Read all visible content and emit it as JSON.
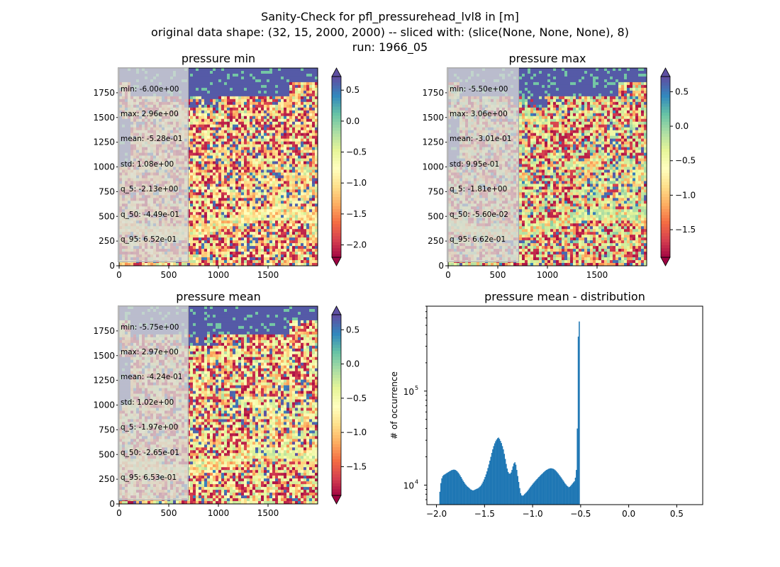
{
  "figure": {
    "suptitle_lines": [
      "Sanity-Check for pfl_pressurehead_lvl8 in [m]",
      "original data shape: (32, 15, 2000, 2000) -- sliced with: (slice(None, None, None), 8)",
      "run: 1966_05"
    ]
  },
  "chart_data": [
    {
      "type": "heatmap",
      "title": "pressure min",
      "xlim": [
        0,
        2000
      ],
      "ylim": [
        0,
        2000
      ],
      "xticks": [
        0,
        500,
        1000,
        1500
      ],
      "yticks": [
        0,
        250,
        500,
        750,
        1000,
        1250,
        1500,
        1750
      ],
      "colormap": "Spectral",
      "colorbar": {
        "vmin": -2.2,
        "vmax": 0.72,
        "ticks": [
          -2.0,
          -1.5,
          -1.0,
          -0.5,
          0.0,
          0.5
        ],
        "extend": "both"
      },
      "stats": {
        "min": "-6.00e+00",
        "max": "2.96e+00",
        "mean": "-5.28e-01",
        "std": "1.08e+00",
        "q_5": "-2.13e+00",
        "q_50": "-4.49e-01",
        "q_95": "6.52e-01"
      }
    },
    {
      "type": "heatmap",
      "title": "pressure max",
      "xlim": [
        0,
        2000
      ],
      "ylim": [
        0,
        2000
      ],
      "xticks": [
        0,
        500,
        1000,
        1500
      ],
      "yticks": [
        0,
        250,
        500,
        750,
        1000,
        1250,
        1500,
        1750
      ],
      "colormap": "Spectral",
      "colorbar": {
        "vmin": -1.9,
        "vmax": 0.72,
        "ticks": [
          -1.5,
          -1.0,
          -0.5,
          0.0,
          0.5
        ],
        "extend": "both"
      },
      "stats": {
        "min": "-5.50e+00",
        "max": "3.06e+00",
        "mean": "-3.01e-01",
        "std": "9.95e-01",
        "q_5": "-1.81e+00",
        "q_50": "-5.60e-02",
        "q_95": "6.62e-01"
      }
    },
    {
      "type": "heatmap",
      "title": "pressure mean",
      "xlim": [
        0,
        2000
      ],
      "ylim": [
        0,
        2000
      ],
      "xticks": [
        0,
        500,
        1000,
        1500
      ],
      "yticks": [
        0,
        250,
        500,
        750,
        1000,
        1250,
        1500,
        1750
      ],
      "colormap": "Spectral",
      "colorbar": {
        "vmin": -1.92,
        "vmax": 0.72,
        "ticks": [
          -1.5,
          -1.0,
          -0.5,
          0.0,
          0.5
        ],
        "extend": "both"
      },
      "stats": {
        "min": "-5.75e+00",
        "max": "2.97e+00",
        "mean": "-4.24e-01",
        "std": "1.02e+00",
        "q_5": "-1.97e+00",
        "q_50": "-2.65e-01",
        "q_95": "6.53e-01"
      }
    },
    {
      "type": "bar",
      "title": "pressure mean - distribution",
      "ylabel": "# of occurrence",
      "yscale": "log",
      "xlim": [
        -2.1,
        0.77
      ],
      "ylim": [
        6200,
        800000
      ],
      "xticks": [
        -2.0,
        -1.5,
        -1.0,
        -0.5,
        0.0,
        0.5
      ],
      "xtick_labels": [
        "−2.0",
        "−1.5",
        "−1.0",
        "−0.5",
        "0.0",
        "0.5"
      ],
      "yticks": [
        10000,
        100000
      ],
      "bar_color": "#1f77b4",
      "bin_width": 0.01,
      "bins_start": -1.97,
      "counts": [
        8500,
        10500,
        11800,
        12500,
        12800,
        13000,
        13200,
        13400,
        13600,
        13800,
        14000,
        14200,
        14400,
        14500,
        14600,
        14600,
        14500,
        14300,
        14000,
        13600,
        13200,
        12700,
        12200,
        11700,
        11200,
        10800,
        10400,
        10100,
        9800,
        9600,
        9400,
        9200,
        9000,
        8900,
        8800,
        8800,
        8900,
        9000,
        9100,
        9200,
        9300,
        9500,
        9700,
        10000,
        10400,
        10900,
        11500,
        12200,
        13000,
        14000,
        15200,
        16600,
        18200,
        20000,
        22000,
        24000,
        26000,
        27800,
        29300,
        30500,
        31500,
        32000,
        31000,
        29500,
        28000,
        26000,
        24000,
        21500,
        19000,
        16800,
        15000,
        13800,
        13300,
        13200,
        13600,
        14500,
        15800,
        17000,
        17500,
        16500,
        14500,
        12500,
        10800,
        9300,
        8200,
        7800,
        7700,
        7800,
        8000,
        8200,
        8400,
        8600,
        8900,
        9200,
        9500,
        9800,
        10100,
        10400,
        10700,
        11000,
        11300,
        11600,
        11900,
        12200,
        12500,
        12800,
        13100,
        13400,
        13700,
        14000,
        14300,
        14500,
        14700,
        14900,
        15000,
        15100,
        15100,
        15000,
        14900,
        14700,
        14400,
        14100,
        13700,
        13300,
        12900,
        12500,
        12100,
        11700,
        11300,
        10900,
        10500,
        10200,
        9900,
        9700,
        9500,
        9600,
        9800,
        10100,
        10400,
        10700,
        11000,
        12000,
        14500,
        40000,
        380000,
        550000
      ]
    }
  ]
}
